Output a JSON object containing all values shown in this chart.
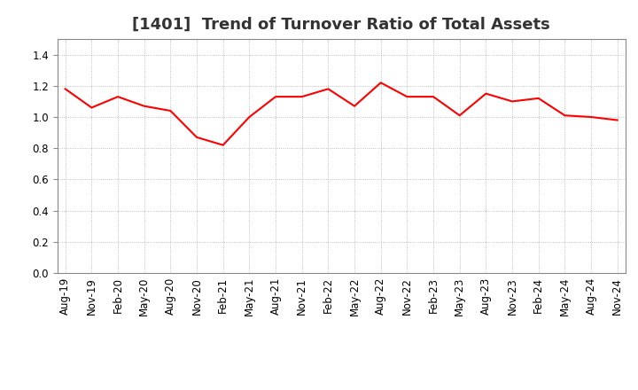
{
  "title": "[1401]  Trend of Turnover Ratio of Total Assets",
  "x_labels": [
    "Aug-19",
    "Nov-19",
    "Feb-20",
    "May-20",
    "Aug-20",
    "Nov-20",
    "Feb-21",
    "May-21",
    "Aug-21",
    "Nov-21",
    "Feb-22",
    "May-22",
    "Aug-22",
    "Nov-22",
    "Feb-23",
    "May-23",
    "Aug-23",
    "Nov-23",
    "Feb-24",
    "May-24",
    "Aug-24",
    "Nov-24"
  ],
  "values": [
    1.18,
    1.06,
    1.13,
    1.07,
    1.04,
    0.87,
    0.82,
    1.0,
    1.13,
    1.13,
    1.18,
    1.07,
    1.22,
    1.13,
    1.13,
    1.01,
    1.15,
    1.1,
    1.12,
    1.01,
    1.0,
    0.98
  ],
  "line_color": "#FF0000",
  "line_width": 1.5,
  "ylim": [
    0.0,
    1.5
  ],
  "yticks": [
    0.0,
    0.2,
    0.4,
    0.6,
    0.8,
    1.0,
    1.2,
    1.4
  ],
  "bg_color": "#FFFFFF",
  "grid_color": "#AAAAAA",
  "title_fontsize": 13,
  "tick_fontsize": 8.5
}
